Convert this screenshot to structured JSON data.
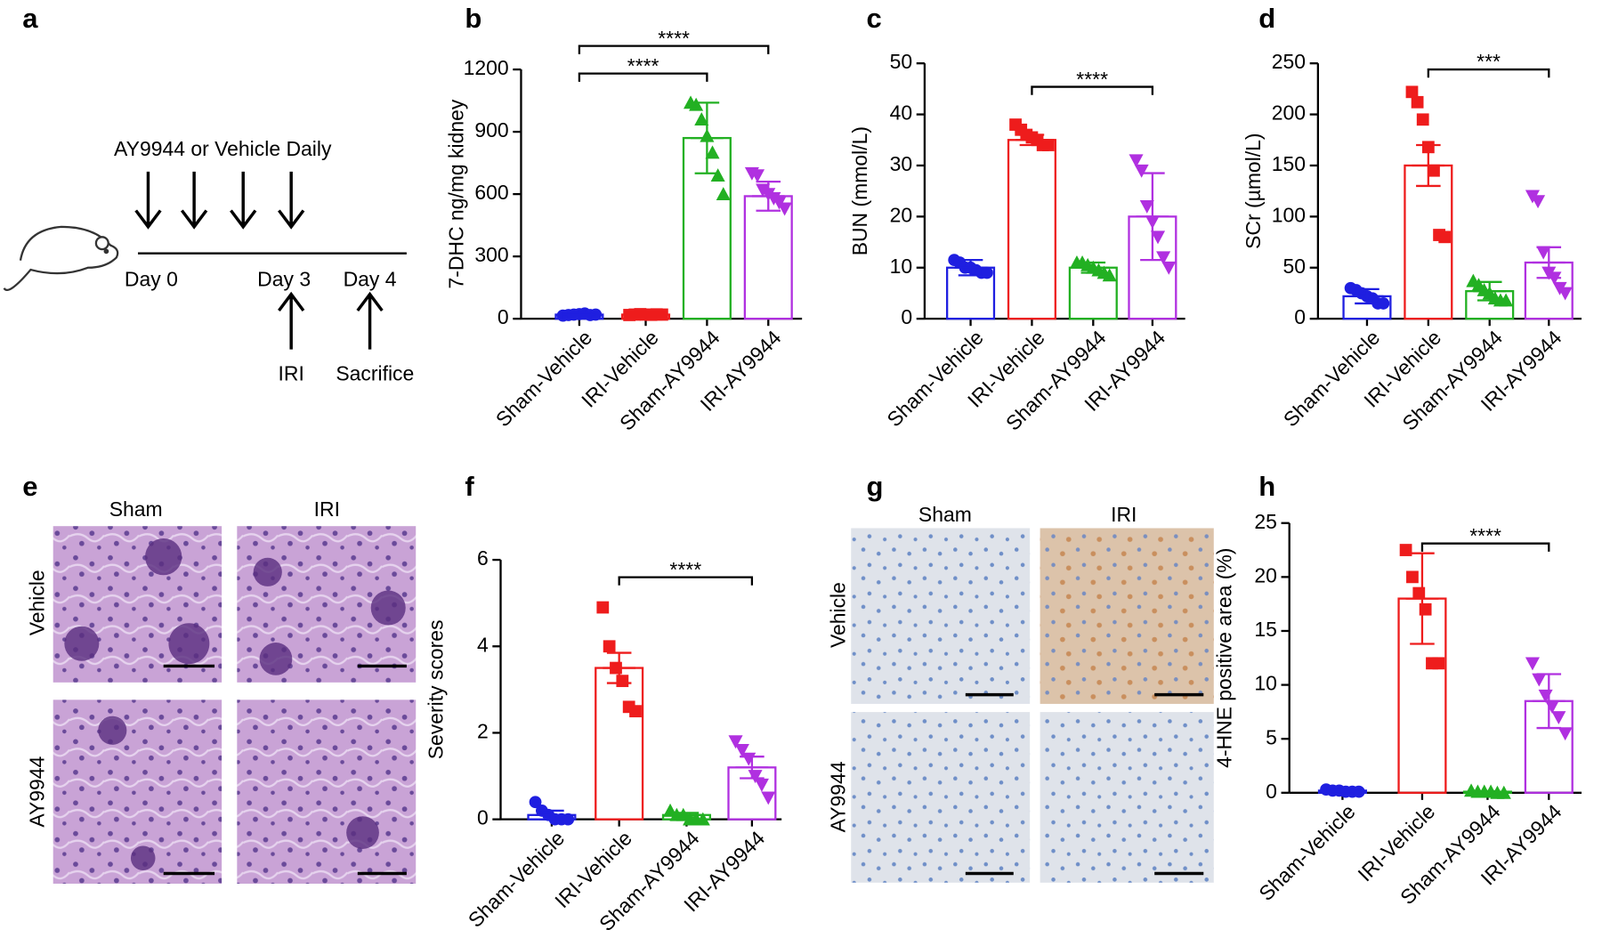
{
  "diagram": {
    "label": "a",
    "treatment": "AY9944 or Vehicle Daily",
    "days": [
      "Day 0",
      "Day 3",
      "Day 4"
    ],
    "events": [
      "IRI",
      "Sacrifice"
    ]
  },
  "images": [
    {
      "label": "e",
      "columns": [
        "Sham",
        "IRI"
      ],
      "rows": [
        "Vehicle",
        "AY9944"
      ]
    },
    {
      "label": "g",
      "columns": [
        "Sham",
        "IRI"
      ],
      "rows": [
        "Vehicle",
        "AY9944"
      ]
    }
  ],
  "chart_data": [
    {
      "type": "bar",
      "label": "b",
      "ylabel": "7-DHC ng/mg kidney",
      "categories": [
        "Sham-Vehicle",
        "IRI-Vehicle",
        "Sham-AY9944",
        "IRI-AY9944"
      ],
      "colors": [
        "#1f1fe0",
        "#ee1c1c",
        "#22b022",
        "#b030e0"
      ],
      "values": [
        20,
        20,
        870,
        590
      ],
      "errors": [
        10,
        5,
        170,
        70
      ],
      "points": [
        [
          15,
          18,
          20,
          22,
          25,
          18,
          20
        ],
        [
          18,
          20,
          22,
          20,
          19,
          21,
          20
        ],
        [
          1040,
          1030,
          960,
          880,
          800,
          690,
          600
        ],
        [
          700,
          690,
          620,
          600,
          580,
          560,
          530
        ]
      ],
      "ylim": [
        0,
        1200
      ],
      "yticks": [
        0,
        300,
        600,
        900,
        1200
      ],
      "significance": [
        {
          "from": 0,
          "to": 2,
          "label": "****"
        },
        {
          "from": 0,
          "to": 3,
          "label": "****"
        }
      ]
    },
    {
      "type": "bar",
      "label": "c",
      "ylabel": "BUN (mmol/L)",
      "categories": [
        "Sham-Vehicle",
        "IRI-Vehicle",
        "Sham-AY9944",
        "IRI-AY9944"
      ],
      "colors": [
        "#1f1fe0",
        "#ee1c1c",
        "#22b022",
        "#b030e0"
      ],
      "values": [
        10,
        35,
        10,
        20
      ],
      "errors": [
        1.5,
        1,
        1,
        8.5
      ],
      "points": [
        [
          11.5,
          11,
          10,
          10,
          9.5,
          9,
          9
        ],
        [
          38,
          37,
          36,
          35.5,
          35,
          34,
          34
        ],
        [
          11,
          11,
          10.5,
          10,
          9.5,
          9,
          8.5
        ],
        [
          31,
          29,
          22,
          19,
          16,
          12,
          10
        ]
      ],
      "ylim": [
        0,
        50
      ],
      "yticks": [
        0,
        10,
        20,
        30,
        40,
        50
      ],
      "significance": [
        {
          "from": 1,
          "to": 3,
          "label": "****"
        }
      ]
    },
    {
      "type": "bar",
      "label": "d",
      "ylabel": "SCr (µmol/L)",
      "categories": [
        "Sham-Vehicle",
        "IRI-Vehicle",
        "Sham-AY9944",
        "IRI-AY9944"
      ],
      "colors": [
        "#1f1fe0",
        "#ee1c1c",
        "#22b022",
        "#b030e0"
      ],
      "values": [
        22,
        150,
        27,
        55
      ],
      "errors": [
        7,
        20,
        9,
        15
      ],
      "points": [
        [
          30,
          28,
          25,
          22,
          20,
          15,
          15
        ],
        [
          222,
          212,
          195,
          168,
          145,
          82,
          80
        ],
        [
          37,
          33,
          28,
          25,
          20,
          18,
          18
        ],
        [
          120,
          115,
          65,
          45,
          40,
          30,
          25
        ]
      ],
      "ylim": [
        0,
        250
      ],
      "yticks": [
        0,
        50,
        100,
        150,
        200,
        250
      ],
      "significance": [
        {
          "from": 1,
          "to": 3,
          "label": "***"
        }
      ]
    },
    {
      "type": "bar",
      "label": "f",
      "ylabel": "Severity scores",
      "categories": [
        "Sham-Vehicle",
        "IRI-Vehicle",
        "Sham-AY9944",
        "IRI-AY9944"
      ],
      "colors": [
        "#1f1fe0",
        "#ee1c1c",
        "#22b022",
        "#b030e0"
      ],
      "values": [
        0.1,
        3.5,
        0.1,
        1.2
      ],
      "errors": [
        0.1,
        0.35,
        0.05,
        0.25
      ],
      "points": [
        [
          0.4,
          0.2,
          0.1,
          0,
          0,
          0
        ],
        [
          4.9,
          4,
          3.5,
          3.2,
          2.6,
          2.5
        ],
        [
          0.2,
          0.1,
          0.1,
          0,
          0,
          0
        ],
        [
          1.8,
          1.6,
          1.4,
          1,
          0.8,
          0.5
        ]
      ],
      "ylim": [
        0,
        6
      ],
      "yticks": [
        0,
        2,
        4,
        6
      ],
      "significance": [
        {
          "from": 1,
          "to": 3,
          "label": "****"
        }
      ]
    },
    {
      "type": "bar",
      "label": "h",
      "ylabel": "4-HNE positive area (%)",
      "categories": [
        "Sham-Vehicle",
        "IRI-Vehicle",
        "Sham-AY9944",
        "IRI-AY9944"
      ],
      "colors": [
        "#1f1fe0",
        "#ee1c1c",
        "#22b022",
        "#b030e0"
      ],
      "values": [
        0.2,
        18,
        0.1,
        8.5
      ],
      "errors": [
        0.05,
        4.2,
        0.05,
        2.5
      ],
      "points": [
        [
          0.3,
          0.2,
          0.2,
          0.1,
          0.1,
          0.1
        ],
        [
          22.5,
          20,
          18.5,
          17,
          12,
          12
        ],
        [
          0.2,
          0.1,
          0.1,
          0.1,
          0,
          0
        ],
        [
          12,
          10.5,
          9,
          8,
          7,
          5.5
        ]
      ],
      "ylim": [
        0,
        25
      ],
      "yticks": [
        0,
        5,
        10,
        15,
        20,
        25
      ],
      "significance": [
        {
          "from": 1,
          "to": 3,
          "label": "****"
        }
      ]
    }
  ]
}
